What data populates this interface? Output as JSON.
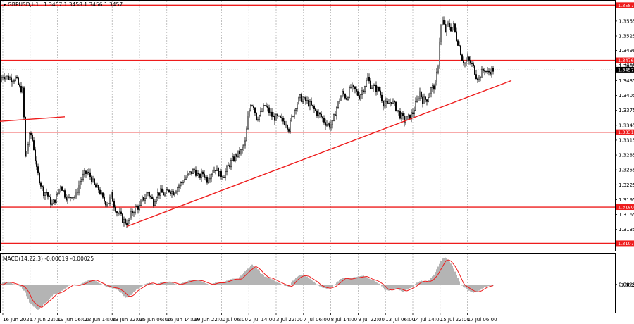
{
  "header": {
    "symbol_label": "GBPUSD,H1",
    "ohlc_text": "1.3457 1.3458 1.3456 1.3457"
  },
  "colors": {
    "level_line": "#ee1c1c",
    "trendline": "#ee1c1c",
    "candle": "#000000",
    "grid": "#9a9a9a",
    "histogram": "#b4b4b4",
    "signal": "#ee1c1c",
    "current_price_box": "#000000"
  },
  "chart_data": [
    {
      "type": "line",
      "name_label": "",
      "price_range": [
        1.3092,
        1.3596
      ],
      "y_ticks": [
        "1.3555",
        "1.3525",
        "1.3496",
        "1.3465",
        "1.3435",
        "1.3405",
        "1.3375",
        "1.3345",
        "1.3315",
        "1.3285",
        "1.3255",
        "1.3225",
        "1.3195",
        "1.3165",
        "1.3135"
      ],
      "x_ticks": [
        "16 Jun 2026",
        "17 Jun 22:00",
        "19 Jun 06:00",
        "22 Jun 14:00",
        "23 Jun 22:00",
        "25 Jun 06:00",
        "26 Jun 14:00",
        "29 Jun 22:00",
        "1 Jul 06:00",
        "2 Jul 14:00",
        "3 Jul 22:00",
        "7 Jul 06:00",
        "8 Jul 14:00",
        "9 Jul 22:00",
        "13 Jul 06:00",
        "14 Jul 14:00",
        "15 Jul 22:00",
        "17 Jul 06:00"
      ],
      "levels": [
        {
          "label": "1.3587",
          "value": 1.3587
        },
        {
          "label": "1.3476",
          "value": 1.3476
        },
        {
          "label": "1.3331",
          "value": 1.3331
        },
        {
          "label": "1.3180",
          "value": 1.318
        },
        {
          "label": "1.3107",
          "value": 1.3107
        }
      ],
      "current_price": {
        "label": "1.3457",
        "value": 1.3457
      },
      "last_price_label": "1.3465",
      "close_anchors": [
        [
          0,
          1.3432
        ],
        [
          3,
          1.3446
        ],
        [
          10,
          1.3442
        ],
        [
          16,
          1.3438
        ],
        [
          22,
          1.344
        ],
        [
          28,
          1.342
        ],
        [
          32,
          1.3415
        ],
        [
          34,
          1.336
        ],
        [
          36,
          1.328
        ],
        [
          39,
          1.33
        ],
        [
          43,
          1.333
        ],
        [
          47,
          1.331
        ],
        [
          52,
          1.3255
        ],
        [
          57,
          1.323
        ],
        [
          62,
          1.321
        ],
        [
          66,
          1.321
        ],
        [
          70,
          1.3195
        ],
        [
          74,
          1.3185
        ],
        [
          80,
          1.32
        ],
        [
          86,
          1.3225
        ],
        [
          92,
          1.3205
        ],
        [
          97,
          1.3195
        ],
        [
          102,
          1.3205
        ],
        [
          107,
          1.32
        ],
        [
          113,
          1.323
        ],
        [
          119,
          1.3245
        ],
        [
          124,
          1.325
        ],
        [
          129,
          1.324
        ],
        [
          135,
          1.322
        ],
        [
          141,
          1.3215
        ],
        [
          146,
          1.3195
        ],
        [
          150,
          1.319
        ],
        [
          154,
          1.319
        ],
        [
          158,
          1.3205
        ],
        [
          162,
          1.3185
        ],
        [
          166,
          1.317
        ],
        [
          170,
          1.3165
        ],
        [
          174,
          1.3155
        ],
        [
          178,
          1.315
        ],
        [
          182,
          1.3148
        ],
        [
          186,
          1.3165
        ],
        [
          190,
          1.3175
        ],
        [
          194,
          1.318
        ],
        [
          198,
          1.318
        ],
        [
          202,
          1.3195
        ],
        [
          206,
          1.32
        ],
        [
          210,
          1.321
        ],
        [
          214,
          1.32
        ],
        [
          218,
          1.319
        ],
        [
          222,
          1.3205
        ],
        [
          228,
          1.321
        ],
        [
          234,
          1.3205
        ],
        [
          240,
          1.3215
        ],
        [
          246,
          1.321
        ],
        [
          252,
          1.322
        ],
        [
          258,
          1.323
        ],
        [
          264,
          1.324
        ],
        [
          270,
          1.3248
        ],
        [
          276,
          1.3255
        ],
        [
          282,
          1.324
        ],
        [
          288,
          1.3248
        ],
        [
          294,
          1.3235
        ],
        [
          300,
          1.325
        ],
        [
          306,
          1.3258
        ],
        [
          312,
          1.3245
        ],
        [
          318,
          1.3245
        ],
        [
          324,
          1.3262
        ],
        [
          330,
          1.3275
        ],
        [
          336,
          1.3285
        ],
        [
          342,
          1.3292
        ],
        [
          348,
          1.331
        ],
        [
          352,
          1.336
        ],
        [
          356,
          1.339
        ],
        [
          360,
          1.3385
        ],
        [
          364,
          1.336
        ],
        [
          370,
          1.3368
        ],
        [
          376,
          1.3385
        ],
        [
          382,
          1.3372
        ],
        [
          388,
          1.336
        ],
        [
          394,
          1.336
        ],
        [
          400,
          1.3355
        ],
        [
          406,
          1.335
        ],
        [
          410,
          1.3338
        ],
        [
          414,
          1.336
        ],
        [
          420,
          1.3385
        ],
        [
          426,
          1.34
        ],
        [
          432,
          1.3395
        ],
        [
          438,
          1.339
        ],
        [
          444,
          1.338
        ],
        [
          450,
          1.337
        ],
        [
          456,
          1.3362
        ],
        [
          462,
          1.335
        ],
        [
          468,
          1.3345
        ],
        [
          472,
          1.3348
        ],
        [
          476,
          1.3372
        ],
        [
          480,
          1.339
        ],
        [
          486,
          1.341
        ],
        [
          492,
          1.34
        ],
        [
          498,
          1.3422
        ],
        [
          504,
          1.3415
        ],
        [
          510,
          1.3403
        ],
        [
          516,
          1.342
        ],
        [
          522,
          1.344
        ],
        [
          526,
          1.3425
        ],
        [
          532,
          1.342
        ],
        [
          538,
          1.3415
        ],
        [
          544,
          1.339
        ],
        [
          550,
          1.3385
        ],
        [
          556,
          1.3395
        ],
        [
          562,
          1.338
        ],
        [
          568,
          1.3365
        ],
        [
          574,
          1.3355
        ],
        [
          580,
          1.336
        ],
        [
          586,
          1.337
        ],
        [
          592,
          1.3395
        ],
        [
          596,
          1.3412
        ],
        [
          600,
          1.3395
        ],
        [
          606,
          1.3398
        ],
        [
          612,
          1.3418
        ],
        [
          618,
          1.3425
        ],
        [
          622,
          1.347
        ],
        [
          625,
          1.354
        ],
        [
          628,
          1.3555
        ],
        [
          632,
          1.3535
        ],
        [
          636,
          1.3548
        ],
        [
          640,
          1.354
        ],
        [
          644,
          1.3545
        ],
        [
          648,
          1.352
        ],
        [
          652,
          1.3505
        ],
        [
          656,
          1.348
        ],
        [
          660,
          1.347
        ],
        [
          664,
          1.3478
        ],
        [
          668,
          1.347
        ],
        [
          672,
          1.3462
        ],
        [
          676,
          1.3445
        ],
        [
          680,
          1.344
        ],
        [
          684,
          1.3452
        ],
        [
          688,
          1.3458
        ],
        [
          692,
          1.345
        ],
        [
          696,
          1.3455
        ],
        [
          700,
          1.3457
        ]
      ],
      "trendlines": [
        {
          "p1": [
            0,
            1.3353
          ],
          "p2": [
            92,
            1.3362
          ]
        },
        {
          "p1": [
            180,
            1.3141
          ],
          "p2": [
            726,
            1.3435
          ]
        }
      ]
    },
    {
      "type": "area",
      "title": "MACD(14,22,3) -0.00019 -0.00025",
      "y_ticks": [
        "0.00259",
        "0.00",
        "-0.00259"
      ],
      "range": [
        -0.0028,
        0.0031
      ],
      "hist_anchors": [
        [
          0,
          0.0
        ],
        [
          6,
          0.0003
        ],
        [
          14,
          0.0002
        ],
        [
          22,
          0.0
        ],
        [
          30,
          -0.0002
        ],
        [
          36,
          -0.0008
        ],
        [
          42,
          -0.0018
        ],
        [
          48,
          -0.0022
        ],
        [
          54,
          -0.0025
        ],
        [
          60,
          -0.0021
        ],
        [
          68,
          -0.0016
        ],
        [
          76,
          -0.001
        ],
        [
          84,
          -0.0008
        ],
        [
          92,
          -0.0004
        ],
        [
          100,
          0.0
        ],
        [
          108,
          -0.0001
        ],
        [
          116,
          0.0001
        ],
        [
          124,
          0.0004
        ],
        [
          132,
          0.0005
        ],
        [
          140,
          0.0002
        ],
        [
          148,
          -0.0001
        ],
        [
          156,
          -0.0003
        ],
        [
          164,
          -0.0004
        ],
        [
          172,
          -0.0008
        ],
        [
          178,
          -0.0013
        ],
        [
          184,
          -0.0012
        ],
        [
          190,
          -0.0007
        ],
        [
          196,
          -0.0004
        ],
        [
          204,
          0.0
        ],
        [
          212,
          0.0002
        ],
        [
          220,
          0.0
        ],
        [
          228,
          0.0002
        ],
        [
          236,
          0.0003
        ],
        [
          244,
          0.0002
        ],
        [
          252,
          0.0
        ],
        [
          260,
          0.0002
        ],
        [
          268,
          0.0004
        ],
        [
          276,
          0.0005
        ],
        [
          284,
          0.0004
        ],
        [
          290,
          0.0002
        ],
        [
          298,
          0.0
        ],
        [
          306,
          0.0002
        ],
        [
          314,
          0.0002
        ],
        [
          322,
          0.0004
        ],
        [
          330,
          0.0006
        ],
        [
          338,
          0.0006
        ],
        [
          346,
          0.0012
        ],
        [
          352,
          0.0016
        ],
        [
          358,
          0.002
        ],
        [
          364,
          0.0017
        ],
        [
          370,
          0.0012
        ],
        [
          376,
          0.0008
        ],
        [
          382,
          0.0007
        ],
        [
          390,
          0.0004
        ],
        [
          398,
          0.0001
        ],
        [
          404,
          -0.0001
        ],
        [
          410,
          -0.0002
        ],
        [
          416,
          0.0004
        ],
        [
          422,
          0.0008
        ],
        [
          428,
          0.001
        ],
        [
          434,
          0.0009
        ],
        [
          440,
          0.0006
        ],
        [
          446,
          0.0003
        ],
        [
          452,
          -0.0001
        ],
        [
          458,
          -0.0003
        ],
        [
          464,
          -0.0004
        ],
        [
          472,
          -0.0002
        ],
        [
          478,
          0.0002
        ],
        [
          486,
          0.0007
        ],
        [
          494,
          0.0006
        ],
        [
          500,
          0.0007
        ],
        [
          508,
          0.0008
        ],
        [
          516,
          0.0009
        ],
        [
          524,
          0.0006
        ],
        [
          532,
          0.0004
        ],
        [
          540,
          0.0
        ],
        [
          546,
          -0.0005
        ],
        [
          552,
          -0.0006
        ],
        [
          560,
          -0.0004
        ],
        [
          566,
          -0.0005
        ],
        [
          572,
          -0.0007
        ],
        [
          578,
          -0.0005
        ],
        [
          586,
          -0.0002
        ],
        [
          592,
          0.0002
        ],
        [
          598,
          0.0004
        ],
        [
          604,
          0.0003
        ],
        [
          610,
          0.0005
        ],
        [
          616,
          0.001
        ],
        [
          622,
          0.0018
        ],
        [
          628,
          0.0026
        ],
        [
          632,
          0.0027
        ],
        [
          636,
          0.0025
        ],
        [
          642,
          0.0019
        ],
        [
          648,
          0.001
        ],
        [
          654,
          0.0
        ],
        [
          660,
          -0.0003
        ],
        [
          666,
          -0.0006
        ],
        [
          672,
          -0.0008
        ],
        [
          678,
          -0.0007
        ],
        [
          684,
          -0.0004
        ],
        [
          690,
          -0.0002
        ],
        [
          696,
          -0.0001
        ],
        [
          700,
          -0.0001
        ]
      ]
    }
  ]
}
